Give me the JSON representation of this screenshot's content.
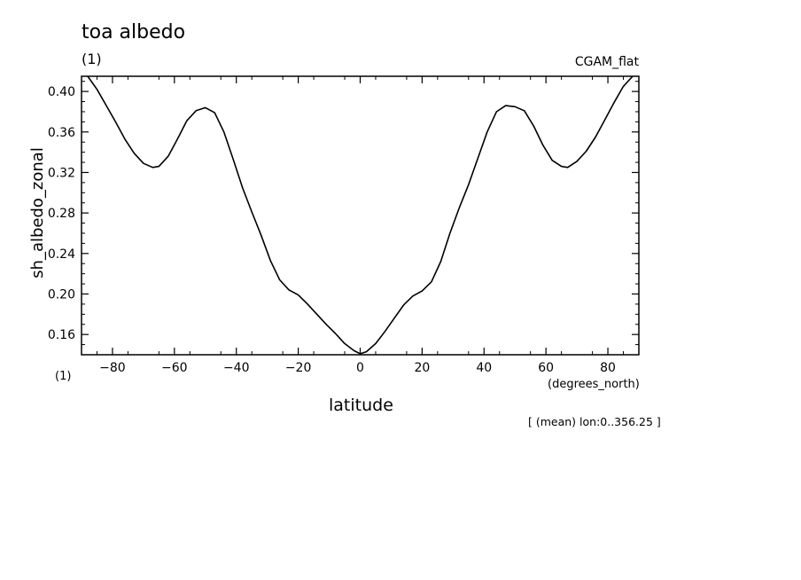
{
  "chart_data": {
    "type": "line",
    "title": "toa albedo",
    "panel_id": "(1)",
    "source_label": "CGAM_flat",
    "footer_id": "(1)",
    "xlabel": "latitude",
    "x_unit": "(degrees_north)",
    "ylabel": "sh_albedo_zonal",
    "mean_note": "[ (mean) lon:0..356.25 ]",
    "xlim": [
      -90,
      90
    ],
    "ylim": [
      0.14,
      0.415
    ],
    "x_ticks": [
      -80,
      -60,
      -40,
      -20,
      0,
      20,
      40,
      60,
      80
    ],
    "x_tick_labels": [
      "−80",
      "−60",
      "−40",
      "−20",
      "0",
      "20",
      "40",
      "60",
      "80"
    ],
    "y_ticks": [
      0.16,
      0.2,
      0.24,
      0.28,
      0.32,
      0.36,
      0.4
    ],
    "y_tick_labels": [
      "0.16",
      "0.20",
      "0.24",
      "0.28",
      "0.32",
      "0.36",
      "0.40"
    ],
    "grid": false,
    "line_color": "#000000",
    "series": [
      {
        "x": [
          -88,
          -85,
          -82,
          -79,
          -76,
          -73,
          -70,
          -67,
          -65,
          -62,
          -59,
          -56,
          -53,
          -50,
          -47,
          -44,
          -41,
          -38,
          -35,
          -32,
          -29,
          -26,
          -23,
          -20,
          -17,
          -14,
          -11,
          -8,
          -5,
          -2,
          0,
          2,
          5,
          8,
          11,
          14,
          17,
          20,
          23,
          26,
          29,
          32,
          35,
          38,
          41,
          44,
          47,
          50,
          53,
          56,
          59,
          62,
          65,
          67,
          70,
          73,
          76,
          79,
          82,
          85,
          88
        ],
        "y": [
          0.415,
          0.402,
          0.386,
          0.37,
          0.353,
          0.339,
          0.329,
          0.325,
          0.326,
          0.336,
          0.353,
          0.371,
          0.381,
          0.384,
          0.379,
          0.36,
          0.333,
          0.305,
          0.281,
          0.258,
          0.233,
          0.214,
          0.204,
          0.199,
          0.19,
          0.18,
          0.17,
          0.161,
          0.151,
          0.144,
          0.141,
          0.143,
          0.151,
          0.163,
          0.176,
          0.189,
          0.198,
          0.203,
          0.212,
          0.232,
          0.26,
          0.285,
          0.308,
          0.334,
          0.36,
          0.38,
          0.386,
          0.385,
          0.381,
          0.366,
          0.347,
          0.332,
          0.326,
          0.325,
          0.331,
          0.341,
          0.355,
          0.372,
          0.389,
          0.405,
          0.415
        ]
      }
    ]
  }
}
